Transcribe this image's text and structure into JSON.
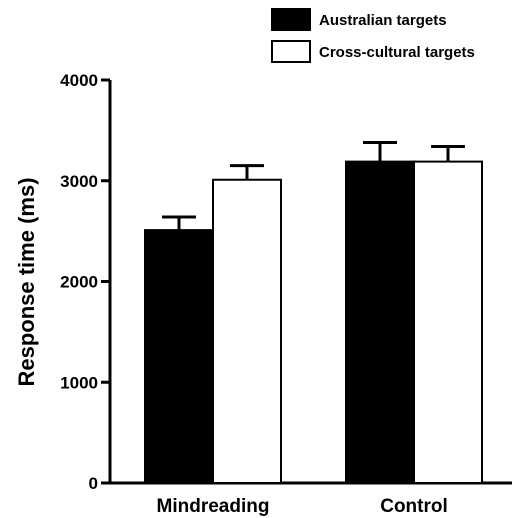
{
  "chart_data": {
    "type": "bar",
    "categories": [
      "Mindreading",
      "Control"
    ],
    "series": [
      {
        "name": "Australian targets",
        "values": [
          2510,
          3190
        ],
        "error": [
          130,
          190
        ],
        "color": "#000000"
      },
      {
        "name": "Cross-cultural targets",
        "values": [
          3010,
          3190
        ],
        "error": [
          140,
          150
        ],
        "color": "#ffffff"
      }
    ],
    "xlabel": "",
    "ylabel": "Response time (ms)",
    "ylim": [
      0,
      4000
    ],
    "yticks": [
      0,
      1000,
      2000,
      3000,
      4000
    ],
    "grid": false,
    "legend_position": "top-right",
    "error_bars": "upper"
  }
}
